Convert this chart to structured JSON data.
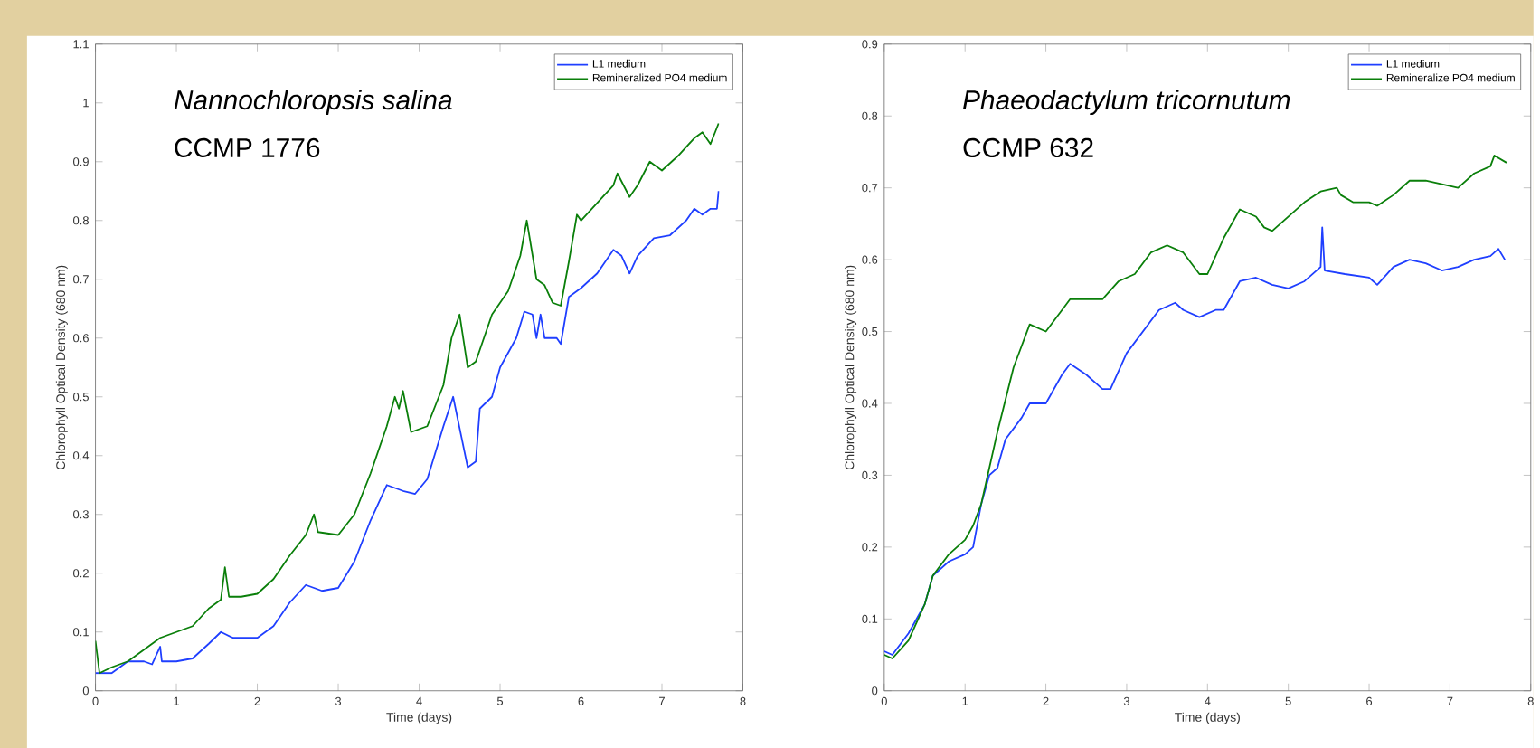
{
  "chart_data": [
    {
      "type": "line",
      "title": "Nannochloropsis salina",
      "subtitle": "CCMP 1776",
      "xlabel": "Time (days)",
      "ylabel": "Chlorophyll Optical Density (680 nm)",
      "xlim": [
        0,
        8
      ],
      "ylim": [
        0,
        1.1
      ],
      "xticks": [
        0,
        1,
        2,
        3,
        4,
        5,
        6,
        7,
        8
      ],
      "yticks": [
        0,
        0.1,
        0.2,
        0.3,
        0.4,
        0.5,
        0.6,
        0.7,
        0.8,
        0.9,
        1,
        1.1
      ],
      "legend": "top right",
      "series": [
        {
          "name": "L1 medium",
          "color": "#1f3fff",
          "x": [
            0,
            0.2,
            0.4,
            0.6,
            0.7,
            0.8,
            0.82,
            1.0,
            1.2,
            1.4,
            1.55,
            1.7,
            2.0,
            2.2,
            2.4,
            2.6,
            2.8,
            3.0,
            3.2,
            3.4,
            3.6,
            3.8,
            3.95,
            4.1,
            4.3,
            4.42,
            4.6,
            4.7,
            4.75,
            4.9,
            5.0,
            5.2,
            5.3,
            5.4,
            5.45,
            5.5,
            5.55,
            5.7,
            5.75,
            5.85,
            6.0,
            6.2,
            6.4,
            6.5,
            6.6,
            6.7,
            6.9,
            7.1,
            7.3,
            7.4,
            7.5,
            7.6,
            7.68,
            7.7
          ],
          "values": [
            0.03,
            0.03,
            0.05,
            0.05,
            0.045,
            0.075,
            0.05,
            0.05,
            0.055,
            0.08,
            0.1,
            0.09,
            0.09,
            0.11,
            0.15,
            0.18,
            0.17,
            0.175,
            0.22,
            0.29,
            0.35,
            0.34,
            0.335,
            0.36,
            0.45,
            0.5,
            0.38,
            0.39,
            0.48,
            0.5,
            0.55,
            0.6,
            0.645,
            0.64,
            0.6,
            0.64,
            0.6,
            0.6,
            0.59,
            0.67,
            0.685,
            0.71,
            0.75,
            0.74,
            0.71,
            0.74,
            0.77,
            0.775,
            0.8,
            0.82,
            0.81,
            0.82,
            0.82,
            0.85
          ]
        },
        {
          "name": "Remineralized PO4 medium",
          "color": "#0a7f0a",
          "x": [
            0,
            0.05,
            0.2,
            0.4,
            0.6,
            0.8,
            1.0,
            1.2,
            1.4,
            1.55,
            1.6,
            1.65,
            1.8,
            2.0,
            2.2,
            2.4,
            2.6,
            2.7,
            2.75,
            3.0,
            3.2,
            3.4,
            3.6,
            3.7,
            3.75,
            3.8,
            3.9,
            4.1,
            4.3,
            4.4,
            4.5,
            4.6,
            4.7,
            4.9,
            5.1,
            5.25,
            5.33,
            5.45,
            5.55,
            5.65,
            5.75,
            5.85,
            5.95,
            6.0,
            6.2,
            6.4,
            6.45,
            6.6,
            6.7,
            6.85,
            7.0,
            7.2,
            7.4,
            7.5,
            7.6,
            7.7
          ],
          "values": [
            0.085,
            0.03,
            0.04,
            0.05,
            0.07,
            0.09,
            0.1,
            0.11,
            0.14,
            0.155,
            0.21,
            0.16,
            0.16,
            0.165,
            0.19,
            0.23,
            0.265,
            0.3,
            0.27,
            0.265,
            0.3,
            0.37,
            0.45,
            0.5,
            0.48,
            0.51,
            0.44,
            0.45,
            0.52,
            0.6,
            0.64,
            0.55,
            0.56,
            0.64,
            0.68,
            0.74,
            0.8,
            0.7,
            0.69,
            0.66,
            0.655,
            0.73,
            0.81,
            0.8,
            0.83,
            0.86,
            0.88,
            0.84,
            0.86,
            0.9,
            0.885,
            0.91,
            0.94,
            0.95,
            0.93,
            0.965
          ]
        }
      ]
    },
    {
      "type": "line",
      "title": "Phaeodactylum tricornutum",
      "subtitle": "CCMP 632",
      "xlabel": "Time (days)",
      "ylabel": "Chlorophyll Optical Density (680 nm)",
      "xlim": [
        0,
        8
      ],
      "ylim": [
        0,
        0.9
      ],
      "xticks": [
        0,
        1,
        2,
        3,
        4,
        5,
        6,
        7,
        8
      ],
      "yticks": [
        0,
        0.1,
        0.2,
        0.3,
        0.4,
        0.5,
        0.6,
        0.7,
        0.8,
        0.9
      ],
      "legend": "top right",
      "series": [
        {
          "name": "L1 medium",
          "color": "#1f3fff",
          "x": [
            0,
            0.1,
            0.3,
            0.5,
            0.6,
            0.8,
            1.0,
            1.1,
            1.2,
            1.3,
            1.4,
            1.5,
            1.7,
            1.8,
            2.0,
            2.2,
            2.3,
            2.5,
            2.7,
            2.8,
            3.0,
            3.2,
            3.4,
            3.6,
            3.7,
            3.9,
            4.1,
            4.2,
            4.4,
            4.6,
            4.8,
            5.0,
            5.2,
            5.4,
            5.42,
            5.45,
            5.7,
            6.0,
            6.1,
            6.3,
            6.5,
            6.7,
            6.9,
            7.1,
            7.3,
            7.5,
            7.6,
            7.68
          ],
          "values": [
            0.055,
            0.05,
            0.08,
            0.12,
            0.16,
            0.18,
            0.19,
            0.2,
            0.26,
            0.3,
            0.31,
            0.35,
            0.38,
            0.4,
            0.4,
            0.44,
            0.455,
            0.44,
            0.42,
            0.42,
            0.47,
            0.5,
            0.53,
            0.54,
            0.53,
            0.52,
            0.53,
            0.53,
            0.57,
            0.575,
            0.565,
            0.56,
            0.57,
            0.59,
            0.645,
            0.585,
            0.58,
            0.575,
            0.565,
            0.59,
            0.6,
            0.595,
            0.585,
            0.59,
            0.6,
            0.605,
            0.615,
            0.6
          ]
        },
        {
          "name": "Remineralize PO4 medium",
          "color": "#0a7f0a",
          "x": [
            0,
            0.1,
            0.3,
            0.5,
            0.6,
            0.8,
            1.0,
            1.1,
            1.2,
            1.3,
            1.4,
            1.6,
            1.7,
            1.8,
            2.0,
            2.2,
            2.3,
            2.5,
            2.7,
            2.9,
            3.1,
            3.3,
            3.5,
            3.7,
            3.9,
            4.0,
            4.2,
            4.4,
            4.6,
            4.7,
            4.8,
            5.0,
            5.2,
            5.4,
            5.6,
            5.65,
            5.8,
            6.0,
            6.1,
            6.3,
            6.5,
            6.7,
            6.9,
            7.1,
            7.3,
            7.5,
            7.55,
            7.7
          ],
          "values": [
            0.05,
            0.045,
            0.07,
            0.12,
            0.16,
            0.19,
            0.21,
            0.23,
            0.26,
            0.31,
            0.36,
            0.45,
            0.48,
            0.51,
            0.5,
            0.53,
            0.545,
            0.545,
            0.545,
            0.57,
            0.58,
            0.61,
            0.62,
            0.61,
            0.58,
            0.58,
            0.63,
            0.67,
            0.66,
            0.645,
            0.64,
            0.66,
            0.68,
            0.695,
            0.7,
            0.69,
            0.68,
            0.68,
            0.675,
            0.69,
            0.71,
            0.71,
            0.705,
            0.7,
            0.72,
            0.73,
            0.745,
            0.735
          ]
        }
      ]
    }
  ]
}
